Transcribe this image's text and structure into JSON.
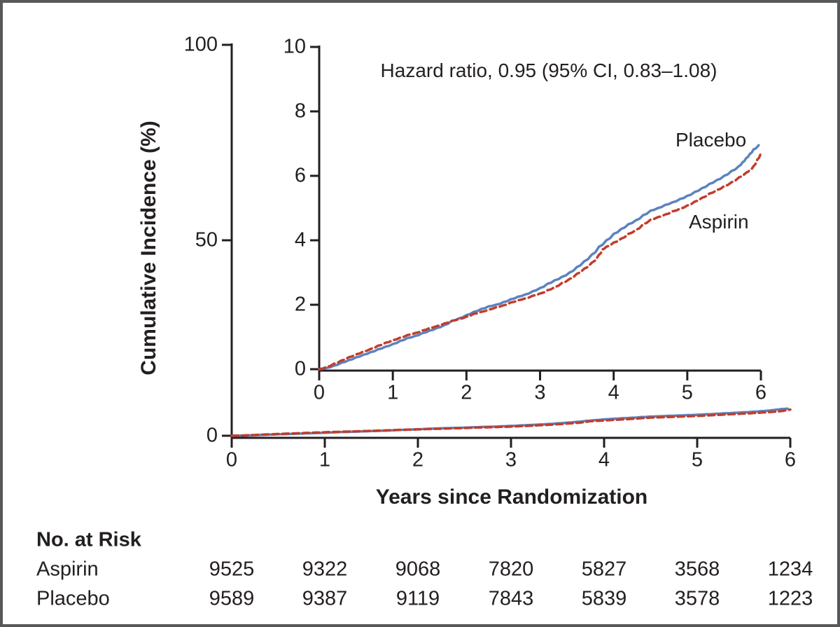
{
  "chart_data": {
    "type": "line",
    "title": "",
    "main": {
      "xlabel": "Years since Randomization",
      "ylabel": "Cumulative Incidence (%)",
      "xlim": [
        0,
        6
      ],
      "ylim": [
        0,
        100
      ],
      "xticks": [
        "0",
        "1",
        "2",
        "3",
        "4",
        "5",
        "6"
      ],
      "yticks": [
        "0",
        "50",
        "100"
      ],
      "grid": false
    },
    "inset": {
      "xlim": [
        0,
        6
      ],
      "ylim": [
        0,
        10
      ],
      "xticks": [
        "0",
        "1",
        "2",
        "3",
        "4",
        "5",
        "6"
      ],
      "yticks": [
        "0",
        "2",
        "4",
        "6",
        "8",
        "10"
      ],
      "annotation": "Hazard ratio, 0.95 (95% CI, 0.83–1.08)",
      "grid": false
    },
    "series": [
      {
        "name": "Placebo",
        "color": "#5b83be",
        "style": "solid",
        "points": [
          [
            0,
            0
          ],
          [
            0.1,
            0.04
          ],
          [
            0.2,
            0.11
          ],
          [
            0.3,
            0.2
          ],
          [
            0.4,
            0.28
          ],
          [
            0.5,
            0.37
          ],
          [
            0.6,
            0.45
          ],
          [
            0.7,
            0.53
          ],
          [
            0.8,
            0.62
          ],
          [
            0.9,
            0.7
          ],
          [
            1.0,
            0.78
          ],
          [
            1.1,
            0.88
          ],
          [
            1.2,
            0.97
          ],
          [
            1.3,
            1.03
          ],
          [
            1.4,
            1.12
          ],
          [
            1.5,
            1.2
          ],
          [
            1.6,
            1.28
          ],
          [
            1.7,
            1.37
          ],
          [
            1.8,
            1.5
          ],
          [
            1.9,
            1.58
          ],
          [
            2.0,
            1.68
          ],
          [
            2.1,
            1.78
          ],
          [
            2.2,
            1.87
          ],
          [
            2.3,
            1.95
          ],
          [
            2.4,
            2.0
          ],
          [
            2.5,
            2.08
          ],
          [
            2.6,
            2.17
          ],
          [
            2.7,
            2.25
          ],
          [
            2.8,
            2.32
          ],
          [
            2.9,
            2.42
          ],
          [
            3.0,
            2.52
          ],
          [
            3.1,
            2.65
          ],
          [
            3.2,
            2.76
          ],
          [
            3.3,
            2.87
          ],
          [
            3.4,
            3.0
          ],
          [
            3.5,
            3.17
          ],
          [
            3.6,
            3.35
          ],
          [
            3.7,
            3.55
          ],
          [
            3.8,
            3.8
          ],
          [
            3.9,
            4.0
          ],
          [
            4.0,
            4.2
          ],
          [
            4.1,
            4.35
          ],
          [
            4.2,
            4.5
          ],
          [
            4.3,
            4.62
          ],
          [
            4.4,
            4.78
          ],
          [
            4.5,
            4.92
          ],
          [
            4.6,
            5.0
          ],
          [
            4.7,
            5.1
          ],
          [
            4.8,
            5.18
          ],
          [
            4.9,
            5.28
          ],
          [
            5.0,
            5.38
          ],
          [
            5.1,
            5.5
          ],
          [
            5.2,
            5.62
          ],
          [
            5.3,
            5.75
          ],
          [
            5.4,
            5.87
          ],
          [
            5.5,
            6.0
          ],
          [
            5.6,
            6.15
          ],
          [
            5.7,
            6.3
          ],
          [
            5.75,
            6.42
          ],
          [
            5.8,
            6.55
          ],
          [
            5.85,
            6.68
          ],
          [
            5.9,
            6.82
          ],
          [
            5.97,
            6.95
          ]
        ]
      },
      {
        "name": "Aspirin",
        "color": "#c23d2c",
        "style": "dashed",
        "points": [
          [
            0,
            0
          ],
          [
            0.1,
            0.07
          ],
          [
            0.2,
            0.17
          ],
          [
            0.3,
            0.27
          ],
          [
            0.4,
            0.37
          ],
          [
            0.5,
            0.46
          ],
          [
            0.6,
            0.55
          ],
          [
            0.7,
            0.63
          ],
          [
            0.8,
            0.73
          ],
          [
            0.9,
            0.82
          ],
          [
            1.0,
            0.9
          ],
          [
            1.1,
            0.98
          ],
          [
            1.2,
            1.06
          ],
          [
            1.3,
            1.12
          ],
          [
            1.4,
            1.2
          ],
          [
            1.5,
            1.28
          ],
          [
            1.6,
            1.34
          ],
          [
            1.7,
            1.42
          ],
          [
            1.8,
            1.5
          ],
          [
            1.9,
            1.56
          ],
          [
            2.0,
            1.63
          ],
          [
            2.1,
            1.72
          ],
          [
            2.2,
            1.78
          ],
          [
            2.3,
            1.85
          ],
          [
            2.4,
            1.92
          ],
          [
            2.5,
            1.98
          ],
          [
            2.6,
            2.07
          ],
          [
            2.7,
            2.14
          ],
          [
            2.8,
            2.2
          ],
          [
            2.9,
            2.28
          ],
          [
            3.0,
            2.35
          ],
          [
            3.1,
            2.45
          ],
          [
            3.2,
            2.55
          ],
          [
            3.3,
            2.68
          ],
          [
            3.4,
            2.8
          ],
          [
            3.5,
            2.96
          ],
          [
            3.6,
            3.12
          ],
          [
            3.7,
            3.3
          ],
          [
            3.8,
            3.55
          ],
          [
            3.85,
            3.72
          ],
          [
            3.9,
            3.8
          ],
          [
            4.0,
            3.93
          ],
          [
            4.1,
            4.05
          ],
          [
            4.2,
            4.2
          ],
          [
            4.3,
            4.32
          ],
          [
            4.4,
            4.5
          ],
          [
            4.5,
            4.64
          ],
          [
            4.6,
            4.72
          ],
          [
            4.7,
            4.8
          ],
          [
            4.8,
            4.9
          ],
          [
            4.9,
            4.98
          ],
          [
            5.0,
            5.08
          ],
          [
            5.1,
            5.2
          ],
          [
            5.2,
            5.32
          ],
          [
            5.3,
            5.45
          ],
          [
            5.4,
            5.56
          ],
          [
            5.5,
            5.68
          ],
          [
            5.6,
            5.8
          ],
          [
            5.7,
            5.95
          ],
          [
            5.8,
            6.1
          ],
          [
            5.85,
            6.18
          ],
          [
            5.9,
            6.3
          ],
          [
            5.95,
            6.5
          ],
          [
            6.0,
            6.7
          ]
        ]
      }
    ],
    "legend_position": "end-of-line-labels"
  },
  "risk_table": {
    "title": "No. at Risk",
    "rows": [
      {
        "label": "Aspirin",
        "values": [
          "9525",
          "9322",
          "9068",
          "7820",
          "5827",
          "3568",
          "1234"
        ]
      },
      {
        "label": "Placebo",
        "values": [
          "9589",
          "9387",
          "9119",
          "7843",
          "5839",
          "3578",
          "1223"
        ]
      }
    ]
  },
  "colors": {
    "placebo_line": "#5b83be",
    "aspirin_line": "#c23d2c",
    "axis": "#231f20",
    "text": "#231f20",
    "frame_border": "#57585a",
    "background": "#ffffff"
  }
}
